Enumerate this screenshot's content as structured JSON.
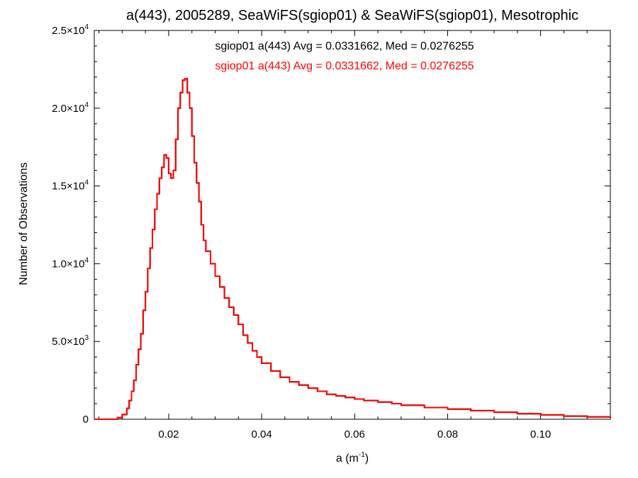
{
  "chart_data": {
    "type": "line",
    "title": "a(443), 2005289, SeaWiFS(sgiop01) & SeaWiFS(sgiop01), Mesotrophic",
    "xlabel": "a (m",
    "xlabel_sup": "-1",
    "xlabel_end": ")",
    "ylabel": "Number of Observations",
    "xlim": [
      0.004,
      0.115
    ],
    "ylim": [
      0,
      25000
    ],
    "x_ticks": [
      {
        "value": 0.02,
        "label": "0.02"
      },
      {
        "value": 0.04,
        "label": "0.04"
      },
      {
        "value": 0.06,
        "label": "0.06"
      },
      {
        "value": 0.08,
        "label": "0.08"
      },
      {
        "value": 0.1,
        "label": "0.10"
      }
    ],
    "y_ticks": [
      {
        "value": 0,
        "mant": "0",
        "exp": ""
      },
      {
        "value": 5000,
        "mant": "5.0×10",
        "exp": "3"
      },
      {
        "value": 10000,
        "mant": "1.0×10",
        "exp": "4"
      },
      {
        "value": 15000,
        "mant": "1.5×10",
        "exp": "4"
      },
      {
        "value": 20000,
        "mant": "2.0×10",
        "exp": "4"
      },
      {
        "value": 25000,
        "mant": "2.5×10",
        "exp": "4"
      }
    ],
    "annotations": [
      {
        "text": "sgiop01 a(443) Avg = 0.0331662, Med = 0.0276255",
        "color": "#000000"
      },
      {
        "text": "sgiop01 a(443) Avg = 0.0331662, Med = 0.0276255",
        "color": "#ff0000"
      }
    ],
    "series": [
      {
        "color": "#000000",
        "copy_of": 1
      },
      {
        "color": "#ff0000",
        "x": [
          0.004,
          0.008,
          0.009,
          0.01,
          0.011,
          0.0115,
          0.012,
          0.0125,
          0.013,
          0.0135,
          0.014,
          0.0145,
          0.015,
          0.0155,
          0.016,
          0.0165,
          0.017,
          0.0175,
          0.018,
          0.0185,
          0.019,
          0.0195,
          0.02,
          0.0205,
          0.021,
          0.0215,
          0.022,
          0.0225,
          0.023,
          0.0235,
          0.024,
          0.0245,
          0.025,
          0.0255,
          0.026,
          0.0265,
          0.027,
          0.0275,
          0.028,
          0.029,
          0.03,
          0.031,
          0.032,
          0.033,
          0.034,
          0.035,
          0.036,
          0.037,
          0.038,
          0.039,
          0.04,
          0.042,
          0.044,
          0.046,
          0.048,
          0.05,
          0.052,
          0.054,
          0.056,
          0.058,
          0.06,
          0.062,
          0.065,
          0.068,
          0.07,
          0.075,
          0.08,
          0.085,
          0.09,
          0.095,
          0.1,
          0.105,
          0.11,
          0.115
        ],
        "y": [
          0,
          0,
          100,
          300,
          700,
          1200,
          1800,
          2500,
          3500,
          4500,
          5500,
          7000,
          8200,
          9700,
          11000,
          12200,
          13500,
          14500,
          15500,
          16200,
          17000,
          16800,
          15800,
          15500,
          16000,
          18000,
          20000,
          21000,
          21800,
          21900,
          21000,
          20000,
          18200,
          16500,
          15200,
          14000,
          12500,
          11500,
          10800,
          10000,
          9200,
          8500,
          7800,
          7200,
          6700,
          6100,
          5400,
          4900,
          4400,
          4000,
          3600,
          3100,
          2700,
          2400,
          2200,
          2000,
          1800,
          1600,
          1500,
          1400,
          1300,
          1200,
          1100,
          1000,
          900,
          750,
          650,
          550,
          450,
          350,
          280,
          200,
          150,
          100
        ]
      }
    ]
  }
}
